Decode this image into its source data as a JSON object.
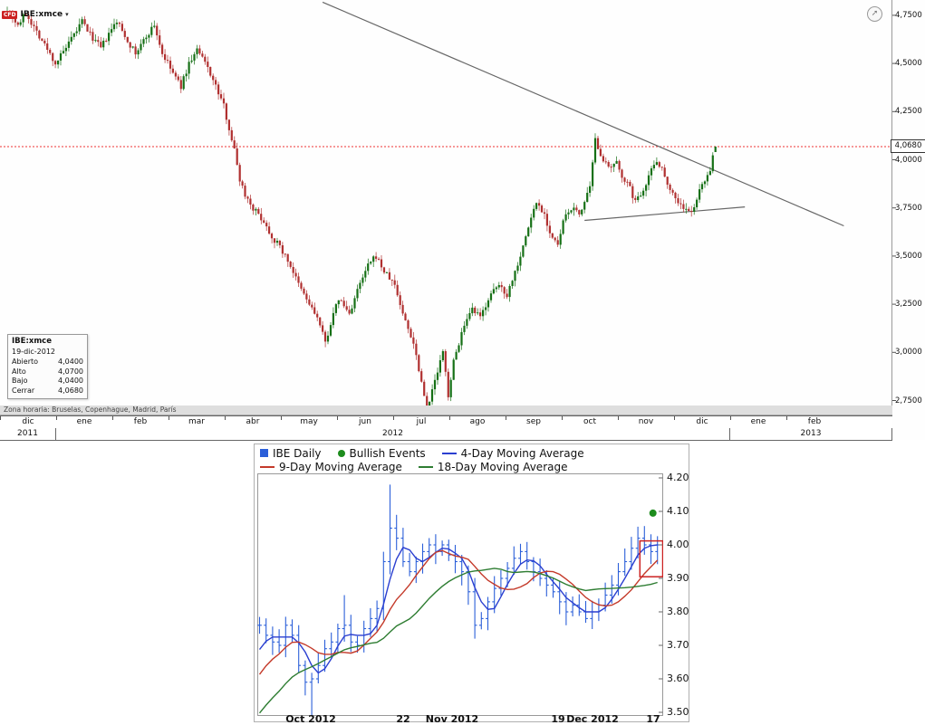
{
  "top_chart": {
    "symbol_badge": "CFD",
    "symbol": "IBE:xmce",
    "icons": {
      "dropdown": "▾",
      "expand": "➚"
    },
    "price_label": "4,0680",
    "info_box": {
      "title": "IBE:xmce",
      "date": "19-dic-2012",
      "rows": [
        {
          "label": "Abierto",
          "value": "4,0400"
        },
        {
          "label": "Alto",
          "value": "4,0700"
        },
        {
          "label": "Bajo",
          "value": "4,0400"
        },
        {
          "label": "Cerrar",
          "value": "4,0680"
        }
      ]
    },
    "status_bar": "Zona horaria: Bruselas, Copenhague, Madrid, París",
    "y_axis": {
      "labels": [
        "4,7500",
        "4,5000",
        "4,2500",
        "4,0000",
        "3,7500",
        "3,5000",
        "3,2500",
        "3,0000",
        "2,7500"
      ],
      "values": [
        4.75,
        4.5,
        4.25,
        4.0,
        3.75,
        3.5,
        3.25,
        3.0,
        2.75
      ]
    },
    "x_axis": {
      "months": [
        "dic",
        "ene",
        "feb",
        "mar",
        "abr",
        "may",
        "jun",
        "jul",
        "ago",
        "sep",
        "oct",
        "nov",
        "dic",
        "ene",
        "feb"
      ],
      "years": [
        {
          "label": "2011",
          "span": [
            0,
            1
          ]
        },
        {
          "label": "2012",
          "span": [
            1,
            13
          ]
        },
        {
          "label": "2013",
          "span": [
            13,
            15
          ]
        }
      ]
    },
    "chart_data": {
      "type": "candlestick",
      "symbol": "IBE:xmce",
      "period": "daily",
      "date_range": [
        "dic 2011",
        "19-dic-2012"
      ],
      "ylim": [
        2.6,
        4.85
      ],
      "days": 265,
      "last": {
        "date": "19-dic-2012",
        "open": 4.04,
        "high": 4.07,
        "low": 4.04,
        "close": 4.068
      },
      "last_price": 4.068,
      "close_keyframes": [
        [
          0,
          4.78
        ],
        [
          4,
          4.7
        ],
        [
          7,
          4.76
        ],
        [
          13,
          4.62
        ],
        [
          18,
          4.5
        ],
        [
          23,
          4.6
        ],
        [
          28,
          4.72
        ],
        [
          31,
          4.65
        ],
        [
          35,
          4.58
        ],
        [
          38,
          4.65
        ],
        [
          41,
          4.72
        ],
        [
          45,
          4.62
        ],
        [
          48,
          4.55
        ],
        [
          52,
          4.64
        ],
        [
          55,
          4.7
        ],
        [
          58,
          4.55
        ],
        [
          62,
          4.45
        ],
        [
          65,
          4.38
        ],
        [
          68,
          4.5
        ],
        [
          71,
          4.57
        ],
        [
          75,
          4.48
        ],
        [
          78,
          4.38
        ],
        [
          81,
          4.28
        ],
        [
          85,
          4.05
        ],
        [
          87,
          3.9
        ],
        [
          89,
          3.82
        ],
        [
          92,
          3.75
        ],
        [
          96,
          3.68
        ],
        [
          99,
          3.6
        ],
        [
          102,
          3.55
        ],
        [
          106,
          3.45
        ],
        [
          109,
          3.35
        ],
        [
          113,
          3.25
        ],
        [
          116,
          3.18
        ],
        [
          119,
          3.05
        ],
        [
          121,
          3.15
        ],
        [
          124,
          3.28
        ],
        [
          128,
          3.2
        ],
        [
          131,
          3.32
        ],
        [
          135,
          3.45
        ],
        [
          138,
          3.5
        ],
        [
          141,
          3.42
        ],
        [
          145,
          3.35
        ],
        [
          148,
          3.2
        ],
        [
          152,
          3.05
        ],
        [
          155,
          2.85
        ],
        [
          157,
          2.7
        ],
        [
          160,
          2.85
        ],
        [
          163,
          3.0
        ],
        [
          165,
          2.78
        ],
        [
          167,
          2.95
        ],
        [
          170,
          3.1
        ],
        [
          174,
          3.22
        ],
        [
          177,
          3.18
        ],
        [
          180,
          3.28
        ],
        [
          184,
          3.35
        ],
        [
          187,
          3.3
        ],
        [
          190,
          3.42
        ],
        [
          193,
          3.55
        ],
        [
          196,
          3.7
        ],
        [
          198,
          3.78
        ],
        [
          201,
          3.72
        ],
        [
          203,
          3.62
        ],
        [
          206,
          3.55
        ],
        [
          208,
          3.68
        ],
        [
          211,
          3.75
        ],
        [
          214,
          3.72
        ],
        [
          216,
          3.78
        ],
        [
          218,
          3.85
        ],
        [
          220,
          4.1
        ],
        [
          223,
          4.0
        ],
        [
          225,
          3.95
        ],
        [
          228,
          3.98
        ],
        [
          230,
          3.92
        ],
        [
          233,
          3.85
        ],
        [
          235,
          3.78
        ],
        [
          238,
          3.85
        ],
        [
          241,
          3.95
        ],
        [
          243,
          4.0
        ],
        [
          245,
          3.95
        ],
        [
          248,
          3.85
        ],
        [
          251,
          3.78
        ],
        [
          253,
          3.75
        ],
        [
          256,
          3.72
        ],
        [
          258,
          3.8
        ],
        [
          261,
          3.9
        ],
        [
          263,
          3.95
        ],
        [
          265,
          4.068
        ]
      ],
      "trendlines": [
        {
          "name": "descending-resistance",
          "points": [
            [
              118,
              4.818
            ],
            [
              313,
              3.657
            ]
          ]
        },
        {
          "name": "pennant-lower-line",
          "points": [
            [
              216,
              3.685
            ],
            [
              276,
              3.755
            ]
          ]
        }
      ],
      "colors": {
        "up": "#167016",
        "down": "#b03030",
        "trendline": "#666666",
        "last_price_line": "#ee3333"
      }
    }
  },
  "bottom_chart": {
    "legend": {
      "items": [
        {
          "label": "IBE Daily",
          "swatch": "square",
          "color": "#2b5fd9"
        },
        {
          "label": "Bullish Events",
          "swatch": "dot",
          "color": "#1d8c1d"
        },
        {
          "label": "4-Day Moving Average",
          "swatch": "line",
          "color": "#2b3fd0"
        },
        {
          "label": "9-Day Moving Average",
          "swatch": "line",
          "color": "#c43a2a"
        },
        {
          "label": "18-Day Moving Average",
          "swatch": "line",
          "color": "#2e7d32"
        }
      ]
    },
    "chart_data": {
      "type": "hlc-bars-with-moving-averages",
      "symbol": "IBE",
      "period": "daily",
      "date_range": [
        "late Sep 2012",
        "Dec 17 2012"
      ],
      "ylim": [
        3.45,
        4.22
      ],
      "closes": [
        3.76,
        3.73,
        3.71,
        3.7,
        3.76,
        3.73,
        3.64,
        3.59,
        3.6,
        3.64,
        3.69,
        3.71,
        3.75,
        3.76,
        3.71,
        3.7,
        3.75,
        3.78,
        3.81,
        3.95,
        4.05,
        4.02,
        3.95,
        3.92,
        3.95,
        3.98,
        4.0,
        3.98,
        4.0,
        3.97,
        3.95,
        3.92,
        3.86,
        3.76,
        3.78,
        3.83,
        3.87,
        3.9,
        3.93,
        3.96,
        3.98,
        3.95,
        3.92,
        3.9,
        3.88,
        3.86,
        3.83,
        3.8,
        3.82,
        3.8,
        3.78,
        3.8,
        3.82,
        3.85,
        3.88,
        3.92,
        3.95,
        3.99,
        4.02,
        4.0,
        3.98,
        4.0
      ],
      "pre_closes": [
        3.3,
        3.32,
        3.34,
        3.36,
        3.38,
        3.4,
        3.42,
        3.45,
        3.47,
        3.5,
        3.53,
        3.56,
        3.58,
        3.6,
        3.63,
        3.66,
        3.7
      ],
      "spikes": [
        {
          "day": 8,
          "low": 3.42
        },
        {
          "day": 13,
          "high": 3.85
        },
        {
          "day": 20,
          "high": 4.18
        },
        {
          "day": 33,
          "low": 3.72
        }
      ],
      "moving_averages": [
        {
          "period": 4,
          "color": "#2b3fd0"
        },
        {
          "period": 9,
          "color": "#c43a2a"
        },
        {
          "period": 18,
          "color": "#2e7d32"
        }
      ],
      "bullish_event": {
        "day": 60.3,
        "price": 4.095
      },
      "pattern_box": {
        "day_start": 58.3,
        "day_end": 61.8,
        "price_low": 3.905,
        "price_high": 4.012
      },
      "y_ticks": [
        {
          "label": "4.20",
          "value": 4.2
        },
        {
          "label": "4.10",
          "value": 4.1
        },
        {
          "label": "4.00",
          "value": 4.0
        },
        {
          "label": "3.90",
          "value": 3.9
        },
        {
          "label": "3.80",
          "value": 3.8
        },
        {
          "label": "3.70",
          "value": 3.7
        },
        {
          "label": "3.60",
          "value": 3.6
        },
        {
          "label": "3.50",
          "value": 3.5
        }
      ],
      "x_ticks": [
        {
          "label": "Oct 2012",
          "day": 7.8
        },
        {
          "label": "22",
          "day": 22
        },
        {
          "label": "Nov 2012",
          "day": 29.5
        },
        {
          "label": "19",
          "day": 45.8
        },
        {
          "label": "Dec 2012",
          "day": 51
        },
        {
          "label": "17",
          "day": 60.3
        }
      ],
      "colors": {
        "bars": "#2b5fd9",
        "bullish": "#1d8c1d",
        "pattern_box": "#cc2222"
      }
    }
  }
}
